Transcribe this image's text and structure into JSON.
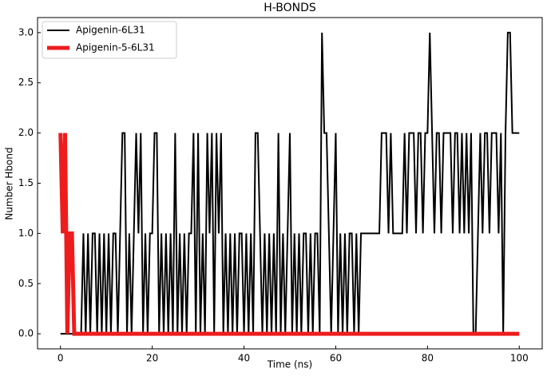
{
  "chart_data": {
    "type": "line",
    "title": "H-BONDS",
    "x_label": "Time (ns)",
    "y_label": "Number Hbond",
    "x": [
      0,
      0.5,
      1,
      1.5,
      2,
      2.5,
      3,
      3.5,
      4,
      4.5,
      5,
      5.5,
      6,
      6.5,
      7,
      7.5,
      8,
      8.5,
      9,
      9.5,
      10,
      10.5,
      11,
      11.5,
      12,
      12.5,
      13,
      13.5,
      14,
      14.5,
      15,
      15.5,
      16,
      16.5,
      17,
      17.5,
      18,
      18.5,
      19,
      19.5,
      20,
      20.5,
      21,
      21.5,
      22,
      22.5,
      23,
      23.5,
      24,
      24.5,
      25,
      25.5,
      26,
      26.5,
      27,
      27.5,
      28,
      28.5,
      29,
      29.5,
      30,
      30.5,
      31,
      31.5,
      32,
      32.5,
      33,
      33.5,
      34,
      34.5,
      35,
      35.5,
      36,
      36.5,
      37,
      37.5,
      38,
      38.5,
      39,
      39.5,
      40,
      40.5,
      41,
      41.5,
      42,
      42.5,
      43,
      43.5,
      44,
      44.5,
      45,
      45.5,
      46,
      46.5,
      47,
      47.5,
      48,
      48.5,
      49,
      49.5,
      50,
      50.5,
      51,
      51.5,
      52,
      52.5,
      53,
      53.5,
      54,
      54.5,
      55,
      55.5,
      56,
      56.5,
      57,
      57.5,
      58,
      58.5,
      59,
      59.5,
      60,
      60.5,
      61,
      61.5,
      62,
      62.5,
      63,
      63.5,
      64,
      64.5,
      65,
      65.5,
      66,
      66.5,
      67,
      67.5,
      68,
      68.5,
      69,
      69.5,
      70,
      70.5,
      71,
      71.5,
      72,
      72.5,
      73,
      73.5,
      74,
      74.5,
      75,
      75.5,
      76,
      76.5,
      77,
      77.5,
      78,
      78.5,
      79,
      79.5,
      80,
      80.5,
      81,
      81.5,
      82,
      82.5,
      83,
      83.5,
      84,
      84.5,
      85,
      85.5,
      86,
      86.5,
      87,
      87.5,
      88,
      88.5,
      89,
      89.5,
      90,
      90.5,
      91,
      91.5,
      92,
      92.5,
      93,
      93.5,
      94,
      94.5,
      95,
      95.5,
      96,
      96.5,
      97,
      97.5,
      98,
      98.5,
      99,
      99.5,
      100
    ],
    "series": [
      {
        "name": "Apigenin-6L31",
        "color": "#000000",
        "width": 2,
        "values": [
          0,
          0,
          0,
          0,
          0,
          0,
          0,
          0,
          0,
          0,
          1,
          0,
          1,
          0,
          1,
          1,
          0,
          1,
          0,
          1,
          0,
          1,
          0,
          1,
          1,
          0,
          1,
          2,
          2,
          0,
          1,
          0,
          1,
          2,
          1,
          2,
          0,
          1,
          0,
          1,
          1,
          2,
          2,
          0,
          1,
          0,
          1,
          0,
          1,
          0,
          2,
          0,
          1,
          0,
          1,
          0,
          1,
          1,
          2,
          0,
          2,
          0,
          1,
          0,
          2,
          1,
          2,
          0,
          2,
          1,
          2,
          0,
          1,
          0,
          1,
          0,
          1,
          0,
          1,
          1,
          0,
          1,
          0,
          1,
          0,
          2,
          2,
          1,
          0,
          1,
          0,
          1,
          0,
          1,
          0,
          2,
          0,
          1,
          0,
          1,
          2,
          0,
          1,
          0,
          1,
          0,
          1,
          1,
          0,
          1,
          0,
          1,
          1,
          0,
          3,
          2,
          2,
          1,
          0,
          1,
          2,
          0,
          1,
          0,
          1,
          0,
          1,
          1,
          0,
          1,
          0,
          1,
          1,
          1,
          1,
          1,
          1,
          1,
          1,
          1,
          2,
          2,
          2,
          1,
          2,
          1,
          1,
          1,
          1,
          1,
          2,
          1,
          2,
          2,
          2,
          1,
          2,
          2,
          1,
          2,
          2,
          3,
          2,
          1,
          2,
          2,
          1,
          2,
          2,
          2,
          2,
          1,
          2,
          2,
          1,
          2,
          1,
          2,
          1,
          2,
          0,
          0,
          1,
          2,
          1,
          2,
          2,
          1,
          2,
          2,
          2,
          1,
          2,
          0,
          2,
          3,
          3,
          2,
          2,
          2,
          2
        ]
      },
      {
        "name": "Apigenin-5-6L31",
        "color": "#ee1c1c",
        "width": 5,
        "values": [
          2,
          1,
          2,
          0,
          1,
          1,
          0,
          0,
          0,
          0,
          0,
          0,
          0,
          0,
          0,
          0,
          0,
          0,
          0,
          0,
          0,
          0,
          0,
          0,
          0,
          0,
          0,
          0,
          0,
          0,
          0,
          0,
          0,
          0,
          0,
          0,
          0,
          0,
          0,
          0,
          0,
          0,
          0,
          0,
          0,
          0,
          0,
          0,
          0,
          0,
          0,
          0,
          0,
          0,
          0,
          0,
          0,
          0,
          0,
          0,
          0,
          0,
          0,
          0,
          0,
          0,
          0,
          0,
          0,
          0,
          0,
          0,
          0,
          0,
          0,
          0,
          0,
          0,
          0,
          0,
          0,
          0,
          0,
          0,
          0,
          0,
          0,
          0,
          0,
          0,
          0,
          0,
          0,
          0,
          0,
          0,
          0,
          0,
          0,
          0,
          0,
          0,
          0,
          0,
          0,
          0,
          0,
          0,
          0,
          0,
          0,
          0,
          0,
          0,
          0,
          0,
          0,
          0,
          0,
          0,
          0,
          0,
          0,
          0,
          0,
          0,
          0,
          0,
          0,
          0,
          0,
          0,
          0,
          0,
          0,
          0,
          0,
          0,
          0,
          0,
          0,
          0,
          0,
          0,
          0,
          0,
          0,
          0,
          0,
          0,
          0,
          0,
          0,
          0,
          0,
          0,
          0,
          0,
          0,
          0,
          0,
          0,
          0,
          0,
          0,
          0,
          0,
          0,
          0,
          0,
          0,
          0,
          0,
          0,
          0,
          0,
          0,
          0,
          0,
          0,
          0,
          0,
          0,
          0,
          0,
          0,
          0,
          0,
          0,
          0,
          0,
          0,
          0,
          0,
          0,
          0,
          0,
          0,
          0,
          0,
          0
        ]
      }
    ],
    "xlim": [
      -5,
      105
    ],
    "ylim": [
      -0.15,
      3.15
    ],
    "xticks": [
      0,
      20,
      40,
      60,
      80,
      100
    ],
    "yticks": [
      {
        "value": 0,
        "label": "0.0"
      },
      0.5,
      {
        "value": 1,
        "label": "1.0"
      },
      1.5,
      {
        "value": 2,
        "label": "2.0"
      },
      2.5,
      {
        "value": 3,
        "label": "3.0"
      }
    ],
    "legend": "upper left"
  }
}
